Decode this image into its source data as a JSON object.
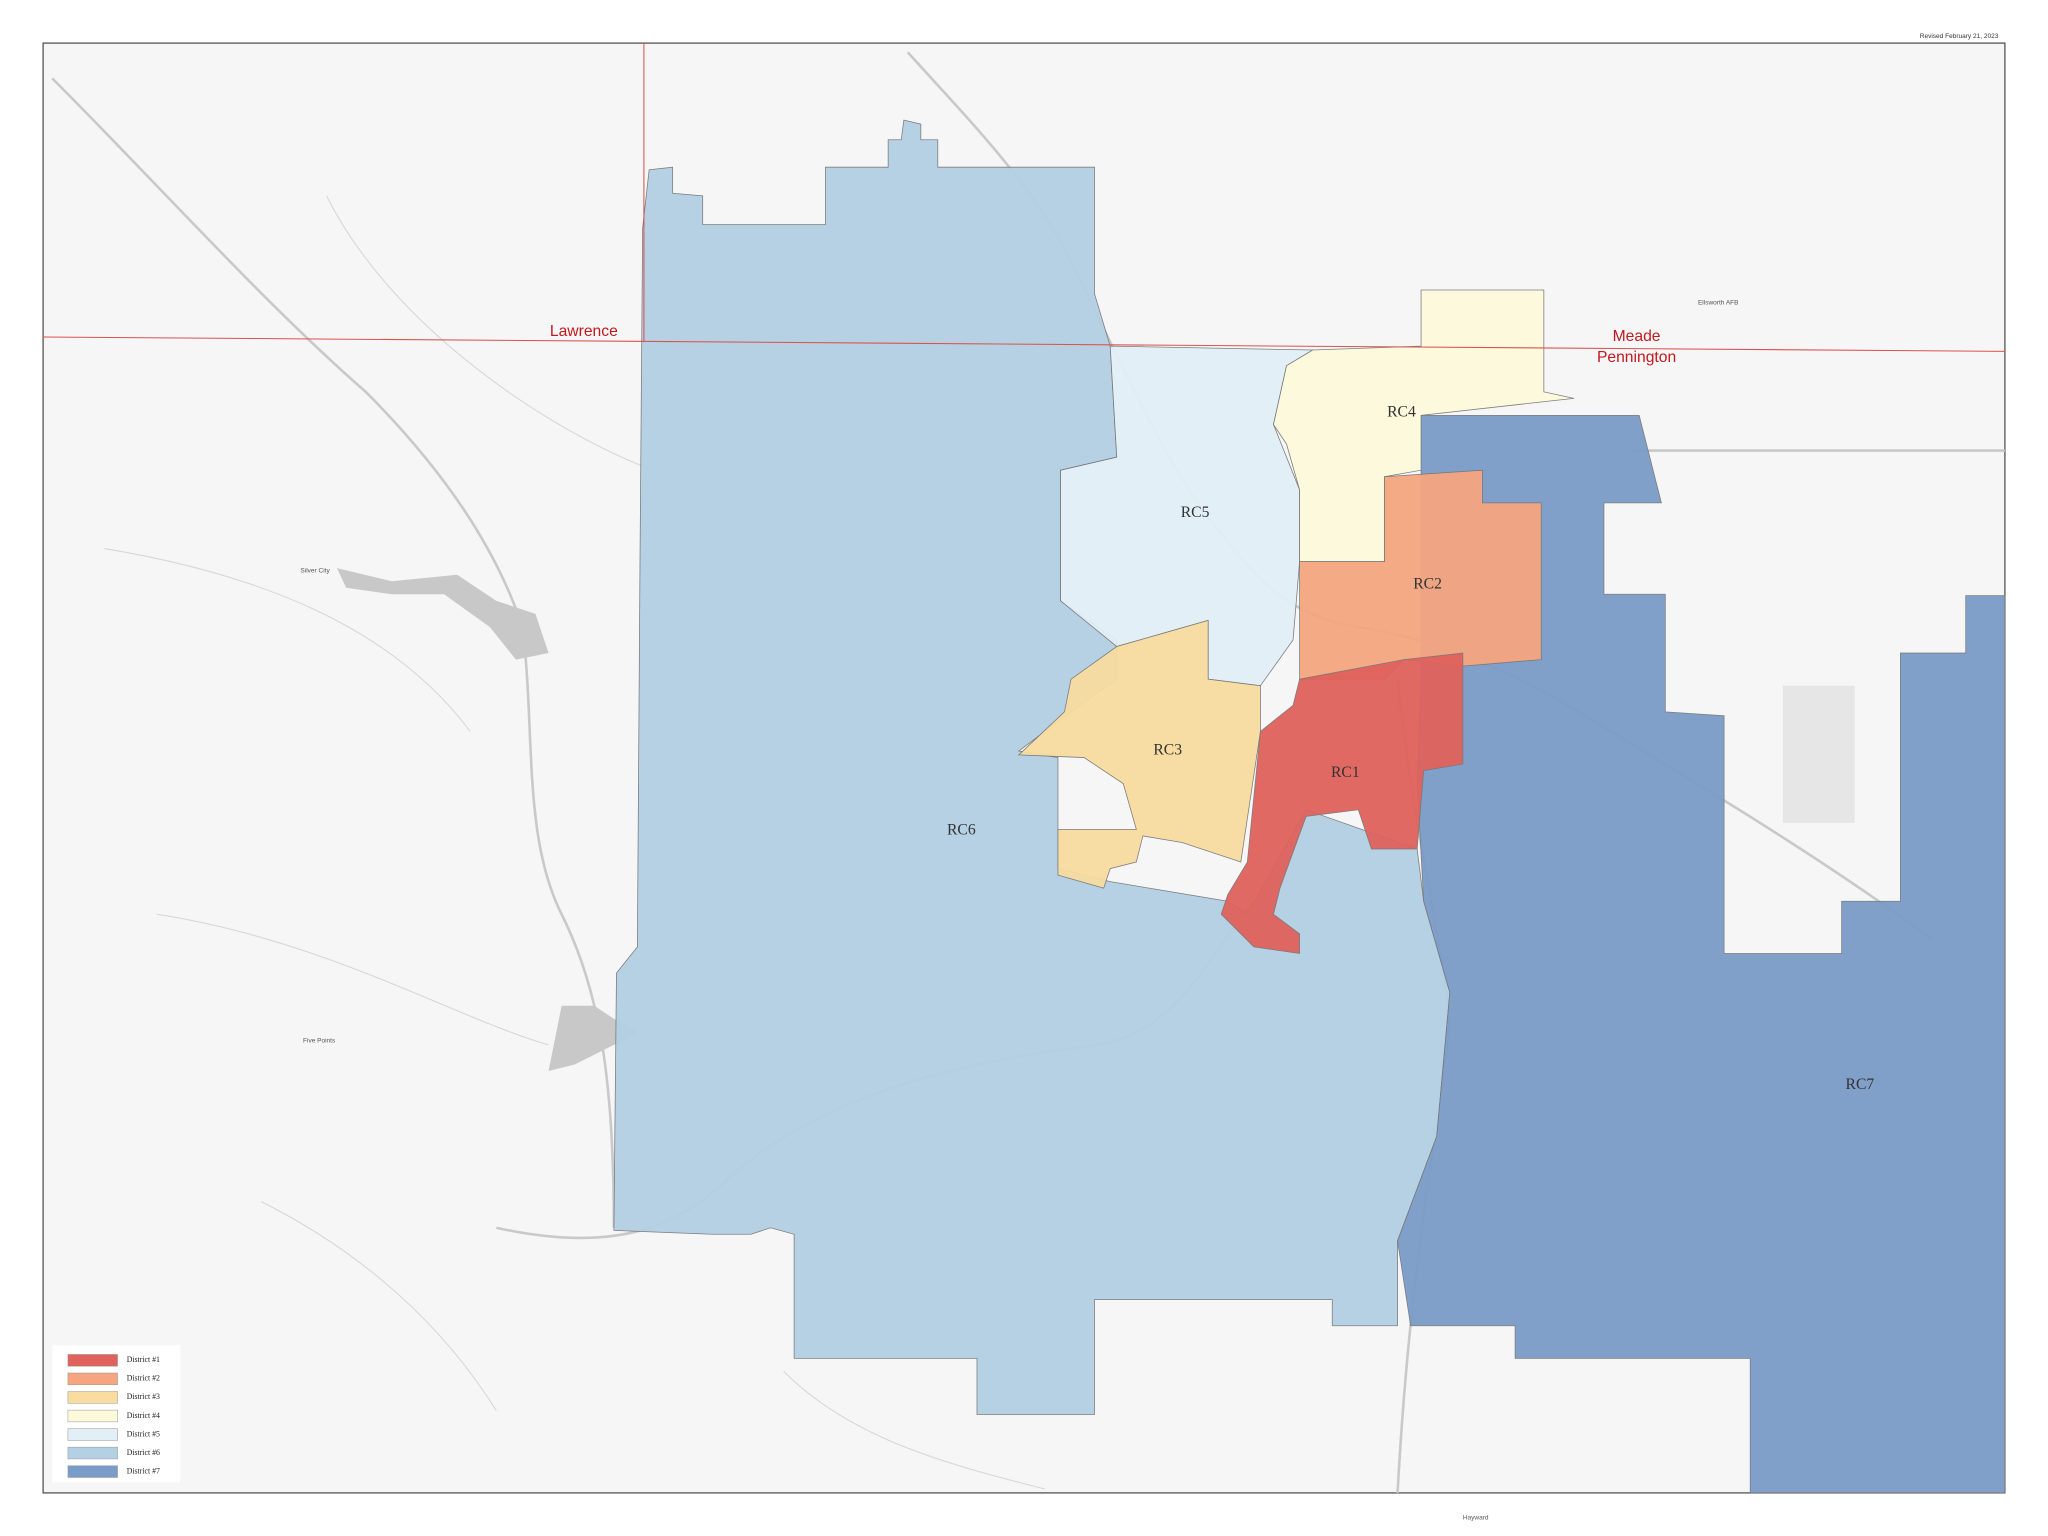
{
  "revised": "Revised February 21, 2023",
  "counties": [
    "Lawrence",
    "Meade",
    "Pennington"
  ],
  "districts": [
    {
      "label": "RC1",
      "legend": "District #1",
      "color": "#e0625c"
    },
    {
      "label": "RC2",
      "legend": "District #2",
      "color": "#f5a681"
    },
    {
      "label": "RC3",
      "legend": "District #3",
      "color": "#f8dca0"
    },
    {
      "label": "RC4",
      "legend": "District #4",
      "color": "#fdfadb"
    },
    {
      "label": "RC5",
      "legend": "District #5",
      "color": "#e2eff6"
    },
    {
      "label": "RC6",
      "legend": "District #6",
      "color": "#b3d0e4"
    },
    {
      "label": "RC7",
      "legend": "District #7",
      "color": "#7a9cc8"
    }
  ],
  "places": [
    "Silver City",
    "Five Points",
    "Hayward",
    "Ellsworth AFB"
  ]
}
